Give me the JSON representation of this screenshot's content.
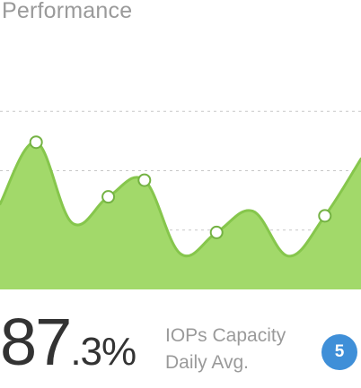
{
  "header": {
    "title": "Performance"
  },
  "chart_data": {
    "type": "area",
    "title": "Performance",
    "x": [
      0,
      1,
      2,
      3,
      4,
      5,
      6,
      7,
      8,
      9,
      10
    ],
    "values": [
      36,
      62,
      28,
      39,
      46,
      15,
      24,
      33,
      14,
      31,
      55
    ],
    "xlim": [
      0,
      10
    ],
    "ylim": [
      0,
      100
    ],
    "grid": true,
    "fill_color": "#a2d96a",
    "line_color": "#86c64c",
    "marker_fill": "#ffffff",
    "marker_stroke": "#74b243"
  },
  "metric": {
    "big": "87",
    "small": ".3%",
    "label_1": "IOPs Capacity",
    "label_2": "Daily Avg.",
    "badge": "5"
  },
  "colors": {
    "text": "#333333",
    "muted": "#9a9a9a",
    "badge": "#3f8fd8"
  }
}
